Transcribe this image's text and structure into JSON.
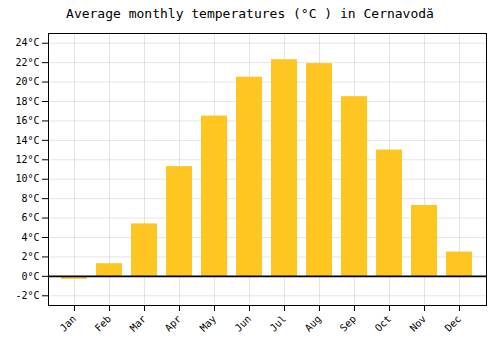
{
  "chart_data": {
    "type": "bar",
    "title": "Average monthly temperatures (°C ) in Cernavodă",
    "categories": [
      "Jan",
      "Feb",
      "Mar",
      "Apr",
      "May",
      "Jun",
      "Jul",
      "Aug",
      "Sep",
      "Oct",
      "Nov",
      "Dec"
    ],
    "values": [
      -0.3,
      1.3,
      5.4,
      11.3,
      16.5,
      20.5,
      22.3,
      21.9,
      18.5,
      13.0,
      7.3,
      2.5
    ],
    "color": "#FFC520",
    "ylim": [
      -3,
      25
    ],
    "yticks": [
      {
        "value": -2,
        "label": "-2°C"
      },
      {
        "value": 0,
        "label": "0°C"
      },
      {
        "value": 2,
        "label": "2°C"
      },
      {
        "value": 4,
        "label": "4°C"
      },
      {
        "value": 6,
        "label": "6°C"
      },
      {
        "value": 8,
        "label": "8°C"
      },
      {
        "value": 10,
        "label": "10°C"
      },
      {
        "value": 12,
        "label": "12°C"
      },
      {
        "value": 14,
        "label": "14°C"
      },
      {
        "value": 16,
        "label": "16°C"
      },
      {
        "value": 18,
        "label": "18°C"
      },
      {
        "value": 20,
        "label": "20°C"
      },
      {
        "value": 22,
        "label": "22°C"
      },
      {
        "value": 24,
        "label": "24°C"
      }
    ],
    "grid": true
  }
}
